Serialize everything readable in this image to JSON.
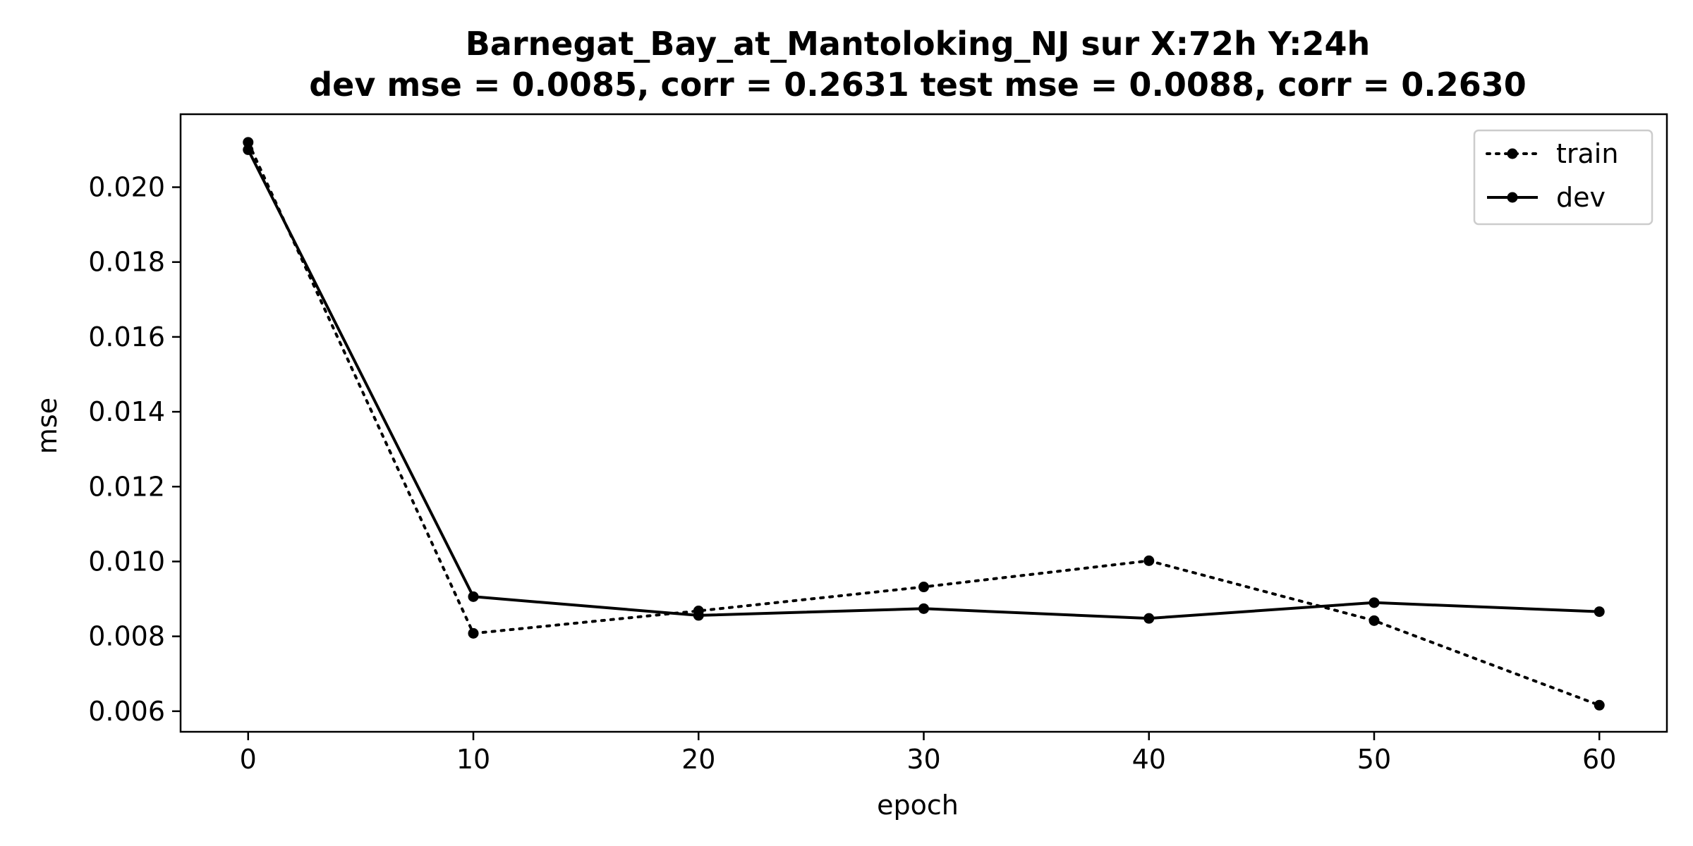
{
  "chart_data": {
    "type": "line",
    "title": "Barnegat_Bay_at_Mantoloking_NJ   sur   X:72h   Y:24h",
    "subtitle": "dev mse = 0.0085, corr = 0.2631   test mse = 0.0088, corr = 0.2630",
    "xlabel": "epoch",
    "ylabel": "mse",
    "xlim": [
      -3,
      63
    ],
    "ylim": [
      0.00545,
      0.02195
    ],
    "x_ticks": [
      0,
      10,
      20,
      30,
      40,
      50,
      60
    ],
    "x_tick_labels": [
      "0",
      "10",
      "20",
      "30",
      "40",
      "50",
      "60"
    ],
    "y_ticks": [
      0.006,
      0.008,
      0.01,
      0.012,
      0.014,
      0.016,
      0.018,
      0.02
    ],
    "y_tick_labels": [
      "0.006",
      "0.008",
      "0.010",
      "0.012",
      "0.014",
      "0.016",
      "0.018",
      "0.020"
    ],
    "grid": false,
    "legend_position": "top-right",
    "x": [
      0,
      10,
      20,
      30,
      40,
      50,
      60
    ],
    "series": [
      {
        "name": "train",
        "style": "dotted",
        "color": "#000000",
        "values": [
          0.0212,
          0.00808,
          0.00868,
          0.00932,
          0.01002,
          0.00842,
          0.00616
        ]
      },
      {
        "name": "dev",
        "style": "solid",
        "color": "#000000",
        "values": [
          0.021,
          0.00906,
          0.00856,
          0.00874,
          0.00848,
          0.0089,
          0.00866
        ]
      }
    ]
  }
}
